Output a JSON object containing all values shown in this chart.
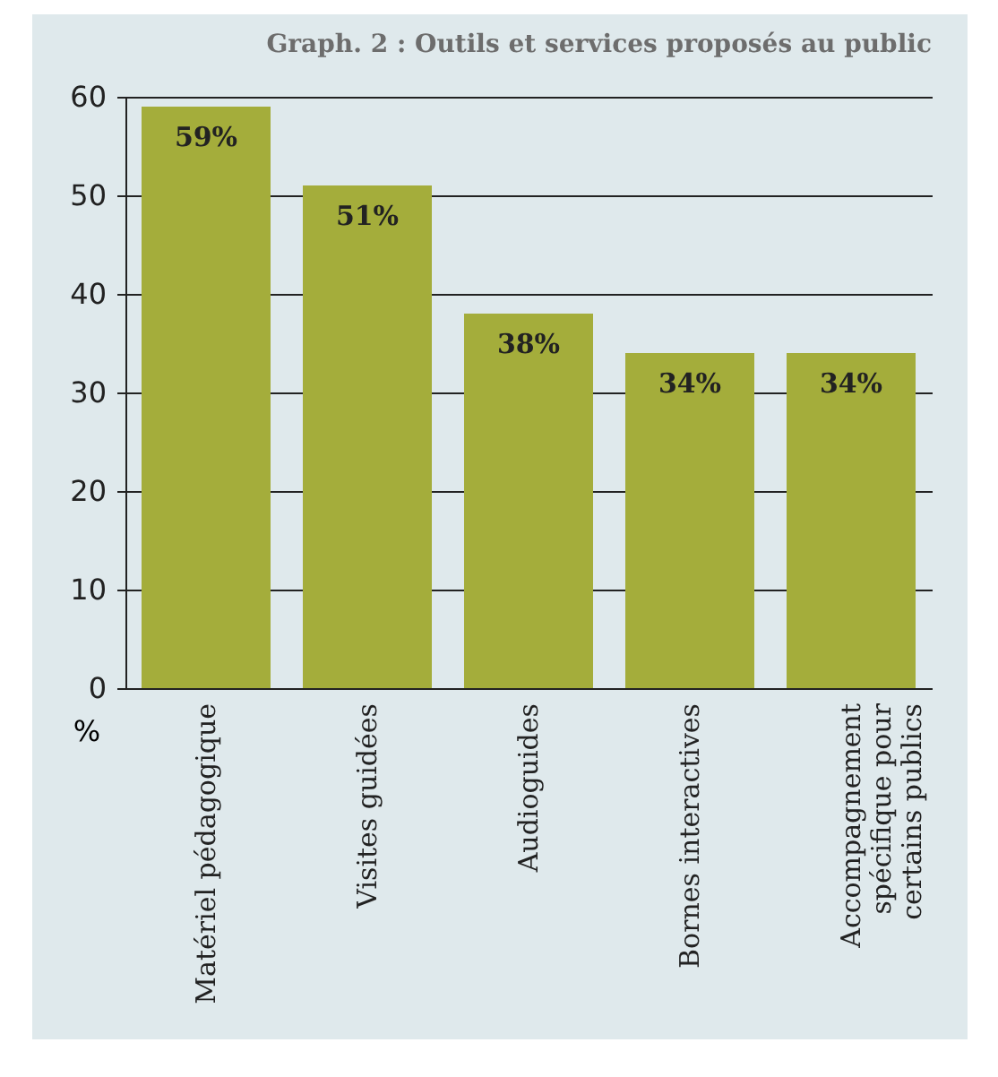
{
  "chart_data": {
    "type": "bar",
    "title": "Graph. 2 : Outils et services proposés au public",
    "ylabel": "%",
    "categories": [
      "Matériel pédagogique",
      "Visites guidées",
      "Audioguides",
      "Bornes interactives",
      "Accompagnement spécifique pour certains publics"
    ],
    "values": [
      59,
      51,
      38,
      34,
      34
    ],
    "color": "#a4ad3b",
    "value_labels": [
      "59%",
      "51%",
      "38%",
      "34%",
      "34%"
    ],
    "ylim": [
      0,
      60
    ],
    "yticks": [
      0,
      10,
      20,
      30,
      40,
      50,
      60
    ],
    "grid": "y"
  }
}
